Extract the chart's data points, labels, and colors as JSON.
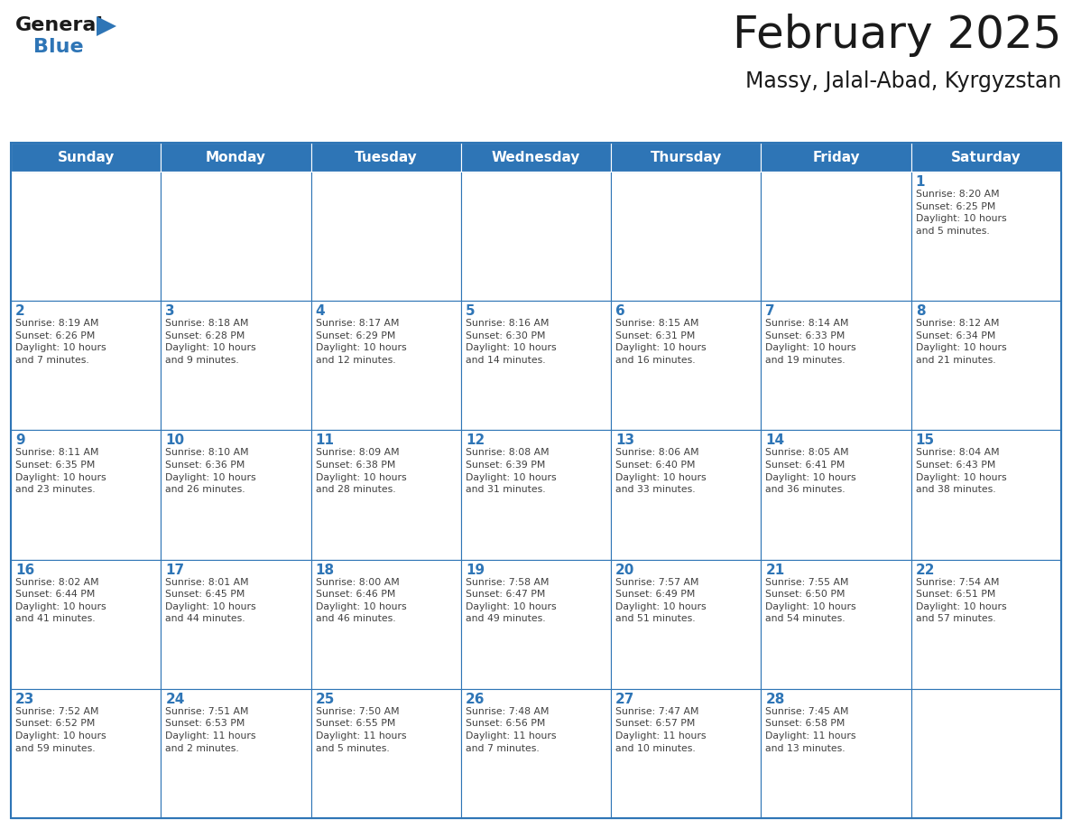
{
  "title": "February 2025",
  "subtitle": "Massy, Jalal-Abad, Kyrgyzstan",
  "days_of_week": [
    "Sunday",
    "Monday",
    "Tuesday",
    "Wednesday",
    "Thursday",
    "Friday",
    "Saturday"
  ],
  "header_bg": "#2E75B6",
  "header_text": "#FFFFFF",
  "cell_bg": "#FFFFFF",
  "border_color": "#2E75B6",
  "day_number_color": "#2E75B6",
  "text_color": "#404040",
  "logo_general_color": "#1a1a1a",
  "logo_blue_color": "#2E75B6",
  "title_fontsize": 36,
  "subtitle_fontsize": 17,
  "header_fontsize": 11,
  "day_num_fontsize": 11,
  "info_fontsize": 7.8,
  "calendar_data": [
    [
      {
        "day": null,
        "info": null
      },
      {
        "day": null,
        "info": null
      },
      {
        "day": null,
        "info": null
      },
      {
        "day": null,
        "info": null
      },
      {
        "day": null,
        "info": null
      },
      {
        "day": null,
        "info": null
      },
      {
        "day": 1,
        "info": "Sunrise: 8:20 AM\nSunset: 6:25 PM\nDaylight: 10 hours\nand 5 minutes."
      }
    ],
    [
      {
        "day": 2,
        "info": "Sunrise: 8:19 AM\nSunset: 6:26 PM\nDaylight: 10 hours\nand 7 minutes."
      },
      {
        "day": 3,
        "info": "Sunrise: 8:18 AM\nSunset: 6:28 PM\nDaylight: 10 hours\nand 9 minutes."
      },
      {
        "day": 4,
        "info": "Sunrise: 8:17 AM\nSunset: 6:29 PM\nDaylight: 10 hours\nand 12 minutes."
      },
      {
        "day": 5,
        "info": "Sunrise: 8:16 AM\nSunset: 6:30 PM\nDaylight: 10 hours\nand 14 minutes."
      },
      {
        "day": 6,
        "info": "Sunrise: 8:15 AM\nSunset: 6:31 PM\nDaylight: 10 hours\nand 16 minutes."
      },
      {
        "day": 7,
        "info": "Sunrise: 8:14 AM\nSunset: 6:33 PM\nDaylight: 10 hours\nand 19 minutes."
      },
      {
        "day": 8,
        "info": "Sunrise: 8:12 AM\nSunset: 6:34 PM\nDaylight: 10 hours\nand 21 minutes."
      }
    ],
    [
      {
        "day": 9,
        "info": "Sunrise: 8:11 AM\nSunset: 6:35 PM\nDaylight: 10 hours\nand 23 minutes."
      },
      {
        "day": 10,
        "info": "Sunrise: 8:10 AM\nSunset: 6:36 PM\nDaylight: 10 hours\nand 26 minutes."
      },
      {
        "day": 11,
        "info": "Sunrise: 8:09 AM\nSunset: 6:38 PM\nDaylight: 10 hours\nand 28 minutes."
      },
      {
        "day": 12,
        "info": "Sunrise: 8:08 AM\nSunset: 6:39 PM\nDaylight: 10 hours\nand 31 minutes."
      },
      {
        "day": 13,
        "info": "Sunrise: 8:06 AM\nSunset: 6:40 PM\nDaylight: 10 hours\nand 33 minutes."
      },
      {
        "day": 14,
        "info": "Sunrise: 8:05 AM\nSunset: 6:41 PM\nDaylight: 10 hours\nand 36 minutes."
      },
      {
        "day": 15,
        "info": "Sunrise: 8:04 AM\nSunset: 6:43 PM\nDaylight: 10 hours\nand 38 minutes."
      }
    ],
    [
      {
        "day": 16,
        "info": "Sunrise: 8:02 AM\nSunset: 6:44 PM\nDaylight: 10 hours\nand 41 minutes."
      },
      {
        "day": 17,
        "info": "Sunrise: 8:01 AM\nSunset: 6:45 PM\nDaylight: 10 hours\nand 44 minutes."
      },
      {
        "day": 18,
        "info": "Sunrise: 8:00 AM\nSunset: 6:46 PM\nDaylight: 10 hours\nand 46 minutes."
      },
      {
        "day": 19,
        "info": "Sunrise: 7:58 AM\nSunset: 6:47 PM\nDaylight: 10 hours\nand 49 minutes."
      },
      {
        "day": 20,
        "info": "Sunrise: 7:57 AM\nSunset: 6:49 PM\nDaylight: 10 hours\nand 51 minutes."
      },
      {
        "day": 21,
        "info": "Sunrise: 7:55 AM\nSunset: 6:50 PM\nDaylight: 10 hours\nand 54 minutes."
      },
      {
        "day": 22,
        "info": "Sunrise: 7:54 AM\nSunset: 6:51 PM\nDaylight: 10 hours\nand 57 minutes."
      }
    ],
    [
      {
        "day": 23,
        "info": "Sunrise: 7:52 AM\nSunset: 6:52 PM\nDaylight: 10 hours\nand 59 minutes."
      },
      {
        "day": 24,
        "info": "Sunrise: 7:51 AM\nSunset: 6:53 PM\nDaylight: 11 hours\nand 2 minutes."
      },
      {
        "day": 25,
        "info": "Sunrise: 7:50 AM\nSunset: 6:55 PM\nDaylight: 11 hours\nand 5 minutes."
      },
      {
        "day": 26,
        "info": "Sunrise: 7:48 AM\nSunset: 6:56 PM\nDaylight: 11 hours\nand 7 minutes."
      },
      {
        "day": 27,
        "info": "Sunrise: 7:47 AM\nSunset: 6:57 PM\nDaylight: 11 hours\nand 10 minutes."
      },
      {
        "day": 28,
        "info": "Sunrise: 7:45 AM\nSunset: 6:58 PM\nDaylight: 11 hours\nand 13 minutes."
      },
      {
        "day": null,
        "info": null
      }
    ]
  ]
}
